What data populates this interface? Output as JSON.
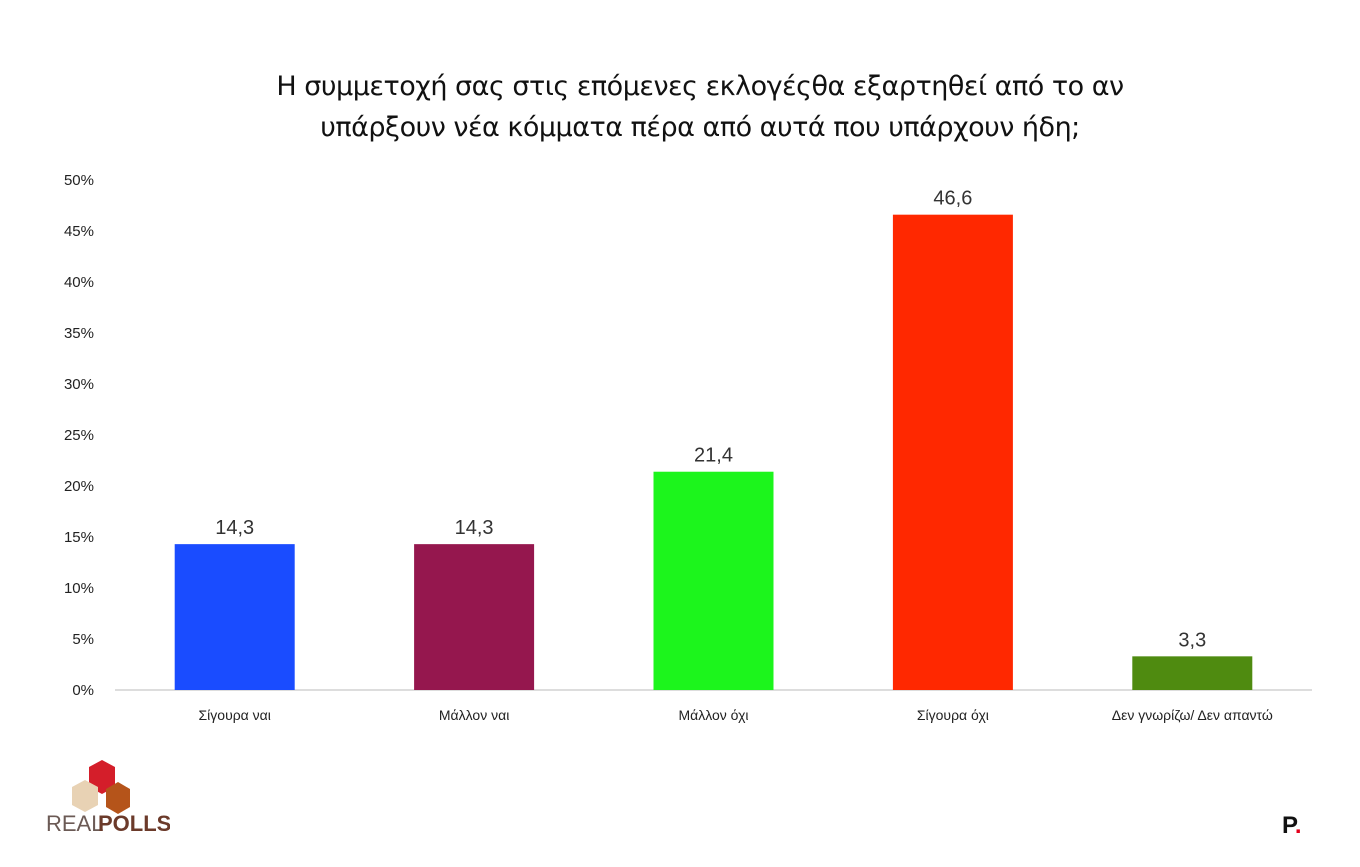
{
  "chart_data": {
    "type": "bar",
    "title_lines": [
      "Η συμμετοχή σας στις επόμενες εκλογέςθα εξαρτηθεί από το αν",
      "υπάρξουν νέα κόμματα πέρα από αυτά που υπάρχουν ήδη;"
    ],
    "categories": [
      "Σίγουρα ναι",
      "Μάλλον ναι",
      "Μάλλον όχι",
      "Σίγουρα όχι",
      "Δεν γνωρίζω/ Δεν απαντώ"
    ],
    "values": [
      14.3,
      14.3,
      21.4,
      46.6,
      3.3
    ],
    "data_labels": [
      "14,3",
      "14,3",
      "21,4",
      "46,6",
      "3,3"
    ],
    "colors": [
      "#1a4cff",
      "#95174e",
      "#1cf51c",
      "#ff2800",
      "#4f8b10"
    ],
    "ylim": [
      0,
      50
    ],
    "yticks": [
      "0%",
      "5%",
      "10%",
      "15%",
      "20%",
      "25%",
      "30%",
      "35%",
      "40%",
      "45%",
      "50%"
    ],
    "grid": false,
    "xlabel": "",
    "ylabel": ""
  },
  "logos": {
    "left": "REALPOLLS",
    "right": "P."
  }
}
